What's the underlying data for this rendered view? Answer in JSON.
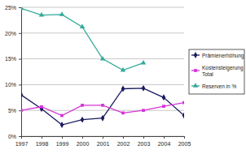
{
  "chart_data": {
    "type": "line",
    "categories": [
      "1997",
      "1998",
      "1999",
      "2000",
      "2001",
      "2002",
      "2003",
      "2004",
      "2005"
    ],
    "series": [
      {
        "name": "Prämienerhöhung",
        "color": "#1a1a5e",
        "marker": "diamond",
        "values": [
          8,
          5.3,
          2.2,
          3.2,
          3.5,
          9.2,
          9.3,
          7.5,
          4
        ]
      },
      {
        "name": "Kostensteigerung Total",
        "color": "#d633d6",
        "marker": "square",
        "values": [
          5,
          5.7,
          4,
          6,
          6,
          4.5,
          5,
          5.8,
          6.5
        ]
      },
      {
        "name": "Reserven in %",
        "color": "#33aa99",
        "marker": "triangle",
        "values": [
          24.8,
          23.5,
          23.6,
          21.2,
          15,
          12.8,
          14.2,
          null,
          null
        ]
      }
    ],
    "ylim": [
      0,
      25
    ],
    "yticks": [
      {
        "value": 0,
        "label": "0%"
      },
      {
        "value": 5,
        "label": "5%"
      },
      {
        "value": 10,
        "label": "10%"
      },
      {
        "value": 15,
        "label": "15%"
      },
      {
        "value": 20,
        "label": "20%"
      },
      {
        "value": 25,
        "label": "25%"
      }
    ],
    "grid": true,
    "legend": "right"
  }
}
